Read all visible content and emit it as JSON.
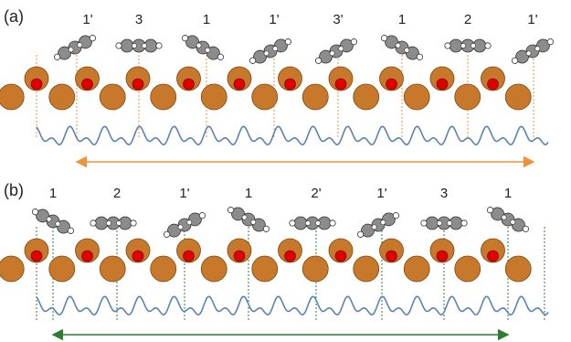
{
  "panels": [
    {
      "label": "(a)",
      "site_labels": [
        "1'",
        "3",
        "1",
        "1'",
        "3'",
        "1",
        "2",
        "1'"
      ],
      "molecule_tilt": [
        "up-left",
        "flat",
        "down-right",
        "up-left",
        "up-left",
        "down-right",
        "flat",
        "up-left"
      ],
      "arrow_color": "#f0923a",
      "guide_color": "#f0923a"
    },
    {
      "label": "(b)",
      "site_labels": [
        "1",
        "2",
        "1'",
        "1",
        "2'",
        "1'",
        "3",
        "1"
      ],
      "molecule_tilt": [
        "down-right",
        "flat",
        "up-left",
        "down-right",
        "flat",
        "up-left",
        "flat",
        "down-right"
      ],
      "arrow_color": "#2e7d32",
      "guide_color": "#2e7d32"
    }
  ],
  "colors": {
    "substrate_atom": "#c8782a",
    "substrate_outline": "#7a4a12",
    "adatom": "#e00000",
    "molecule_carbon": "#8c8c8c",
    "molecule_hydrogen": "#ffffff",
    "potential_curve": "#5b82b5"
  }
}
